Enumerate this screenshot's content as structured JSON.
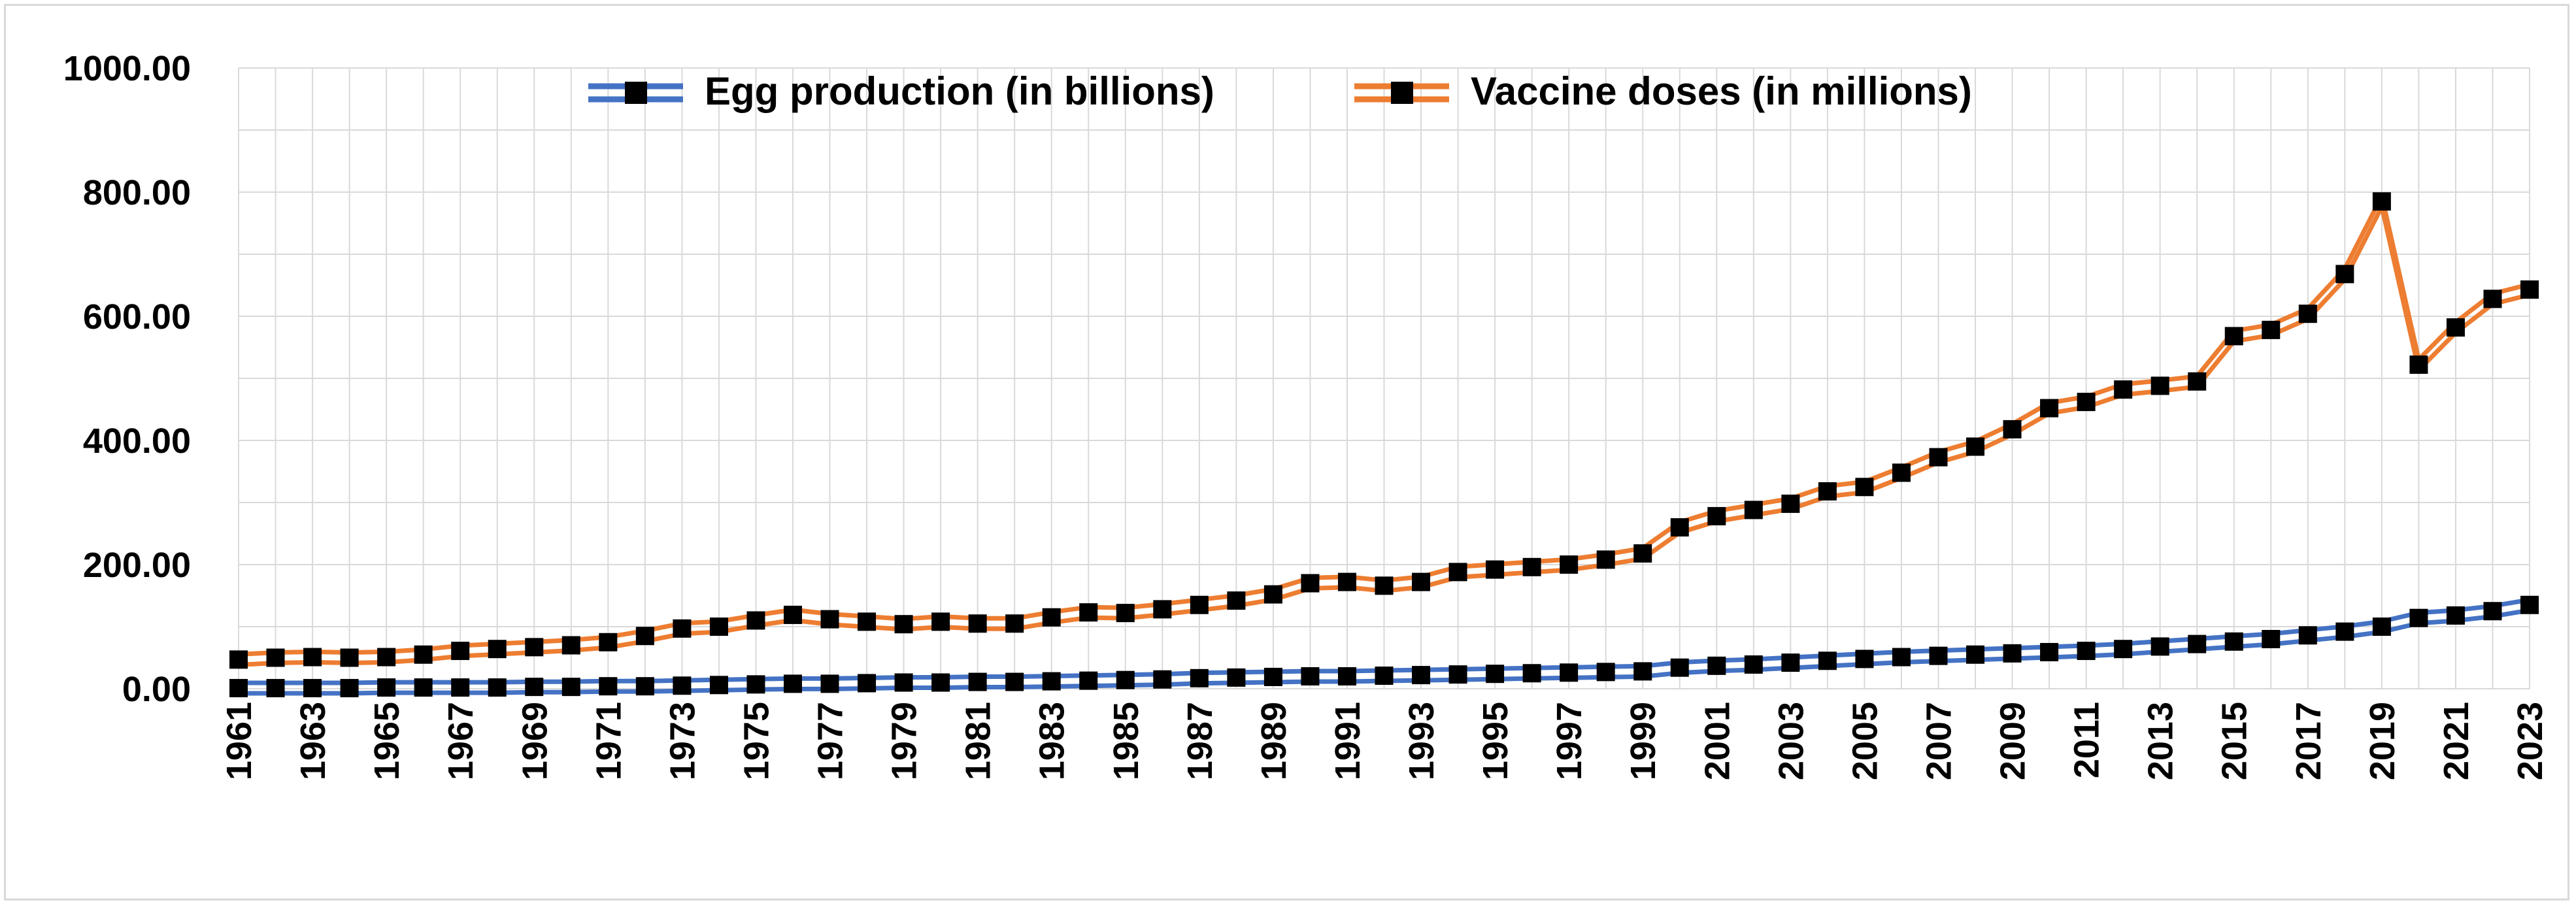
{
  "chart_data": {
    "type": "line",
    "title": "",
    "xlabel": "",
    "ylabel": "",
    "ylim": [
      0,
      1000
    ],
    "y_ticks": [
      "0.00",
      "200.00",
      "400.00",
      "600.00",
      "800.00",
      "1000.00"
    ],
    "grid": true,
    "legend_position": "top-center",
    "x": [
      1961,
      1962,
      1963,
      1964,
      1965,
      1966,
      1967,
      1968,
      1969,
      1970,
      1971,
      1972,
      1973,
      1974,
      1975,
      1976,
      1977,
      1978,
      1979,
      1980,
      1981,
      1982,
      1983,
      1984,
      1985,
      1986,
      1987,
      1988,
      1989,
      1990,
      1991,
      1992,
      1993,
      1994,
      1995,
      1996,
      1997,
      1998,
      1999,
      2000,
      2001,
      2002,
      2003,
      2004,
      2005,
      2006,
      2007,
      2008,
      2009,
      2010,
      2011,
      2012,
      2013,
      2014,
      2015,
      2016,
      2017,
      2018,
      2019,
      2020,
      2021,
      2022,
      2023
    ],
    "x_tick_labels": [
      "1961",
      "1963",
      "1965",
      "1967",
      "1969",
      "1971",
      "1973",
      "1975",
      "1977",
      "1979",
      "1981",
      "1983",
      "1985",
      "1987",
      "1989",
      "1991",
      "1993",
      "1995",
      "1997",
      "1999",
      "2001",
      "2003",
      "2005",
      "2007",
      "2009",
      "2011",
      "2013",
      "2015",
      "2017",
      "2019",
      "2021",
      "2023"
    ],
    "series": [
      {
        "name": "Egg production (in billions)",
        "color": "#4472c4",
        "values": [
          1,
          1,
          1,
          1,
          2,
          2,
          2,
          2,
          3,
          3,
          4,
          4,
          5,
          6,
          7,
          8,
          8,
          9,
          10,
          10,
          11,
          11,
          12,
          13,
          14,
          15,
          17,
          18,
          19,
          20,
          20,
          21,
          22,
          23,
          24,
          25,
          26,
          27,
          28,
          34,
          37,
          39,
          42,
          45,
          48,
          51,
          53,
          55,
          57,
          59,
          61,
          64,
          68,
          72,
          76,
          80,
          86,
          92,
          100,
          114,
          118,
          125,
          135
        ]
      },
      {
        "name": "Vaccine doses (in millions)",
        "color": "#ed7d31",
        "values": [
          47,
          50,
          51,
          50,
          51,
          55,
          61,
          64,
          67,
          70,
          75,
          85,
          97,
          100,
          110,
          119,
          112,
          108,
          104,
          108,
          105,
          105,
          115,
          123,
          122,
          128,
          135,
          142,
          152,
          170,
          172,
          166,
          172,
          188,
          192,
          196,
          200,
          208,
          218,
          260,
          278,
          288,
          298,
          318,
          325,
          348,
          373,
          390,
          418,
          452,
          462,
          482,
          488,
          495,
          568,
          578,
          604,
          668,
          785,
          522,
          582,
          628,
          643
        ]
      }
    ]
  }
}
